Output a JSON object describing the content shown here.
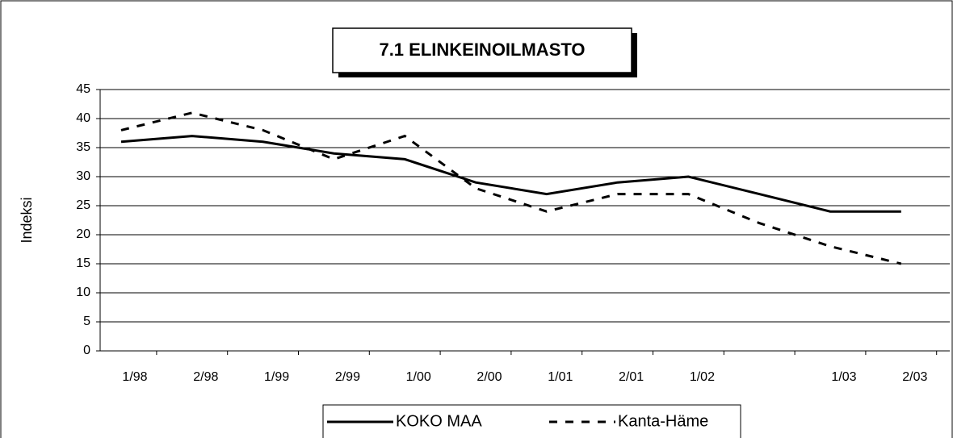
{
  "chart_data": {
    "type": "line",
    "title": "7.1 ELINKEINOILMASTO",
    "ylabel": "Indeksi",
    "categories": [
      "1/98",
      "2/98",
      "1/99",
      "2/99",
      "1/00",
      "2/00",
      "1/01",
      "2/01",
      "1/02",
      null,
      "1/03",
      "2/03"
    ],
    "series": [
      {
        "name": "KOKO MAA",
        "color": "#000000",
        "style": "solid",
        "values": [
          36,
          37,
          36,
          34,
          33,
          29,
          27,
          29,
          30,
          27,
          24,
          24
        ]
      },
      {
        "name": "Kanta-Häme",
        "color": "#000000",
        "style": "dashed",
        "values": [
          38,
          41,
          38,
          33,
          37,
          28,
          24,
          27,
          27,
          22,
          18,
          15
        ]
      }
    ],
    "ylim": [
      0,
      45
    ],
    "yticks": [
      0,
      5,
      10,
      15,
      20,
      25,
      30,
      35,
      40,
      45
    ],
    "grid": true,
    "legend": "bottom"
  }
}
